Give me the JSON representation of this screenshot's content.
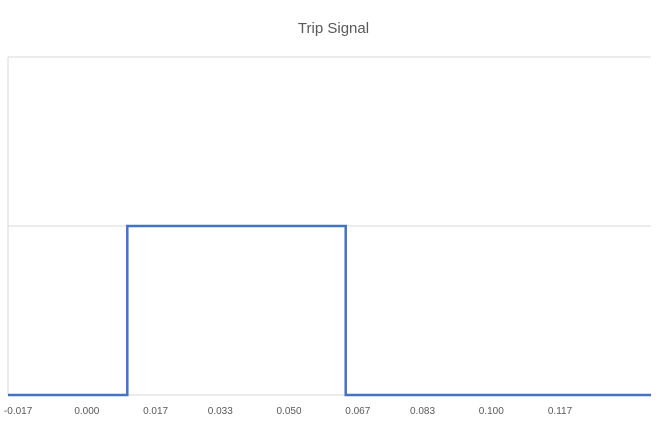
{
  "chart_data": {
    "type": "line",
    "title": "Trip Signal",
    "xlabel": "",
    "ylabel": "",
    "x_ticks": [
      "-0.017",
      "0.000",
      "0.017",
      "0.033",
      "0.050",
      "0.067",
      "0.083",
      "0.100",
      "0.117"
    ],
    "xlim": [
      -0.0195,
      0.1395
    ],
    "ylim": [
      0,
      2
    ],
    "grid": true,
    "legend": "none",
    "series": [
      {
        "color": "#4472C4",
        "x": [
          -0.0195,
          0.01,
          0.01,
          0.064,
          0.064,
          0.1395
        ],
        "y": [
          0,
          0,
          1,
          1,
          0,
          0
        ]
      }
    ]
  },
  "colors": {
    "series": "#4472C4",
    "grid": "#d9d9d9",
    "text": "#595959"
  }
}
